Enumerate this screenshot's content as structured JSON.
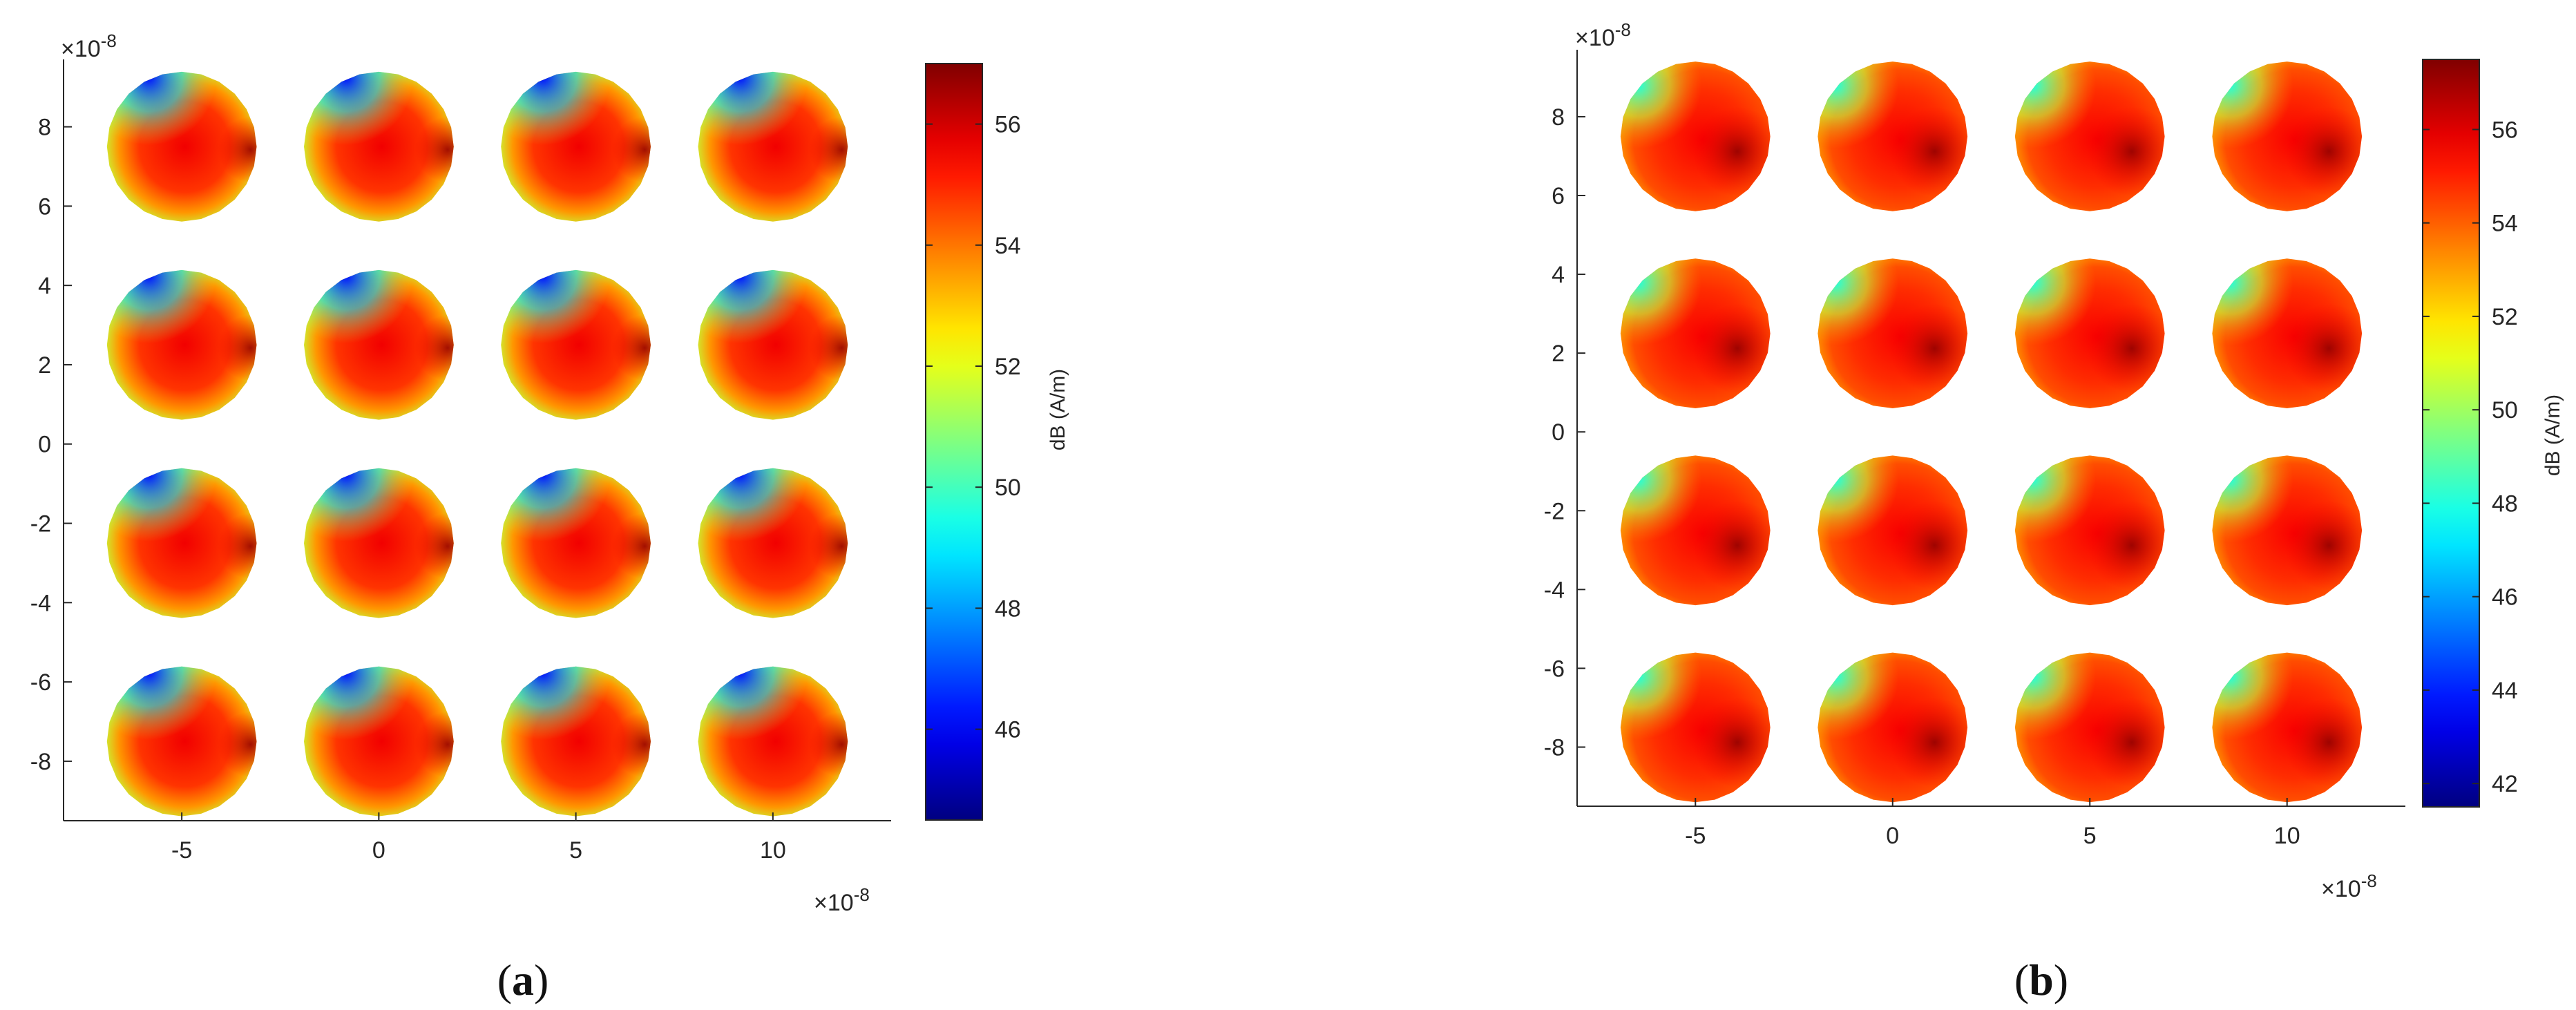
{
  "figure": {
    "panels": [
      {
        "label_open": "(",
        "label_letter": "a",
        "label_close": ")"
      },
      {
        "label_open": "(",
        "label_letter": "b",
        "label_close": ")"
      }
    ]
  },
  "chart_data": [
    {
      "type": "heatmap",
      "panel": "a",
      "title": "",
      "x_tick_labels": [
        "-5",
        "0",
        "5",
        "10"
      ],
      "y_tick_labels": [
        "8",
        "6",
        "4",
        "2",
        "0",
        "-2",
        "-4",
        "-6",
        "-8"
      ],
      "x_ticks": [
        -5,
        0,
        5,
        10
      ],
      "y_ticks": [
        8,
        6,
        4,
        2,
        0,
        -2,
        -4,
        -6,
        -8
      ],
      "x_multiplier": "×10",
      "y_multiplier": "×10",
      "exponent": "-8",
      "xlim": [
        -8,
        13
      ],
      "ylim": [
        -9.5,
        9.7
      ],
      "layout": "4 x 4 grid of circular elements",
      "element_centers_x": [
        -5,
        0,
        5,
        10
      ],
      "element_centers_y": [
        7.5,
        2.5,
        -2.5,
        -7.5
      ],
      "element_radius": 1.9,
      "colormap": "jet",
      "colorbar": {
        "label": "dB (A/m)",
        "min": 44.5,
        "max": 57,
        "tick_labels": [
          "56",
          "54",
          "52",
          "50",
          "48",
          "46"
        ],
        "ticks": [
          56,
          54,
          52,
          50,
          48,
          46
        ]
      },
      "field_pattern": {
        "center_value": 55.6,
        "edge_value": 51.6,
        "cold_spot_value": 46.2,
        "cold_spot_side": "upper-left",
        "hot_band": "horizontal"
      }
    },
    {
      "type": "heatmap",
      "panel": "b",
      "title": "",
      "x_tick_labels": [
        "-5",
        "0",
        "5",
        "10"
      ],
      "y_tick_labels": [
        "8",
        "6",
        "4",
        "2",
        "0",
        "-2",
        "-4",
        "-6",
        "-8"
      ],
      "x_ticks": [
        -5,
        0,
        5,
        10
      ],
      "y_ticks": [
        8,
        6,
        4,
        2,
        0,
        -2,
        -4,
        -6,
        -8
      ],
      "x_multiplier": "×10",
      "y_multiplier": "×10",
      "exponent": "-8",
      "xlim": [
        -8,
        13
      ],
      "ylim": [
        -9.5,
        9.7
      ],
      "layout": "4 x 4 grid of circular elements",
      "element_centers_x": [
        -5,
        0,
        5,
        10
      ],
      "element_centers_y": [
        7.5,
        2.5,
        -2.5,
        -7.5
      ],
      "element_radius": 1.9,
      "colormap": "jet",
      "colorbar": {
        "label": "dB (A/m)",
        "min": 41.5,
        "max": 57.5,
        "tick_labels": [
          "56",
          "54",
          "52",
          "50",
          "48",
          "46",
          "44",
          "42"
        ],
        "ticks": [
          56,
          54,
          52,
          50,
          48,
          46,
          44,
          42
        ]
      },
      "field_pattern": {
        "center_value": 55.6,
        "edge_value": 53.0,
        "cold_spot_value": 48.0,
        "cold_spot_side": "upper-left",
        "hot_band": "right"
      }
    }
  ]
}
